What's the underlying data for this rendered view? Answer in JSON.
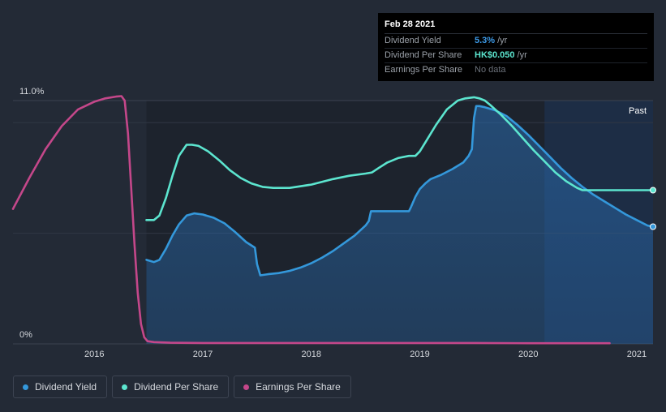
{
  "chart_data": {
    "type": "line",
    "title": "",
    "xlabel": "",
    "ylabel": "",
    "ylim": [
      0,
      11.0
    ],
    "xlim": [
      2015.25,
      2021.15
    ],
    "x_ticks": [
      "2016",
      "2017",
      "2018",
      "2019",
      "2020",
      "2021"
    ],
    "y_ticks": [
      "0%",
      "11.0%"
    ],
    "past_label": "Past",
    "past_start": 2020.15,
    "series": [
      {
        "name": "Dividend Yield",
        "color": "#3498db",
        "fill": true,
        "x": [
          2016.48,
          2016.55,
          2016.6,
          2016.66,
          2016.72,
          2016.78,
          2016.85,
          2016.92,
          2017.0,
          2017.1,
          2017.2,
          2017.3,
          2017.4,
          2017.48,
          2017.5,
          2017.53,
          2017.6,
          2017.7,
          2017.8,
          2017.9,
          2018.0,
          2018.1,
          2018.2,
          2018.3,
          2018.4,
          2018.5,
          2018.53,
          2018.55,
          2018.6,
          2018.7,
          2018.8,
          2018.9,
          2018.92,
          2018.96,
          2019.0,
          2019.05,
          2019.1,
          2019.2,
          2019.3,
          2019.4,
          2019.45,
          2019.48,
          2019.5,
          2019.52,
          2019.55,
          2019.6,
          2019.7,
          2019.8,
          2019.9,
          2020.0,
          2020.1,
          2020.2,
          2020.3,
          2020.4,
          2020.5,
          2020.6,
          2020.7,
          2020.8,
          2020.9,
          2021.0,
          2021.1,
          2021.15
        ],
        "values": [
          3.8,
          3.7,
          3.8,
          4.3,
          4.9,
          5.4,
          5.8,
          5.9,
          5.85,
          5.7,
          5.45,
          5.05,
          4.6,
          4.35,
          3.6,
          3.1,
          3.15,
          3.2,
          3.3,
          3.45,
          3.65,
          3.9,
          4.2,
          4.55,
          4.9,
          5.35,
          5.55,
          6.0,
          6.0,
          6.0,
          6.0,
          6.0,
          6.2,
          6.65,
          7.0,
          7.25,
          7.45,
          7.65,
          7.9,
          8.2,
          8.5,
          8.8,
          10.2,
          10.75,
          10.75,
          10.7,
          10.55,
          10.3,
          9.9,
          9.45,
          8.95,
          8.45,
          7.95,
          7.5,
          7.1,
          6.75,
          6.45,
          6.15,
          5.85,
          5.6,
          5.35,
          5.3
        ]
      },
      {
        "name": "Dividend Per Share",
        "color": "#5ce5cf",
        "fill": false,
        "x": [
          2016.48,
          2016.55,
          2016.6,
          2016.66,
          2016.72,
          2016.78,
          2016.85,
          2016.9,
          2016.96,
          2017.05,
          2017.15,
          2017.25,
          2017.35,
          2017.45,
          2017.55,
          2017.65,
          2017.8,
          2018.0,
          2018.2,
          2018.35,
          2018.5,
          2018.56,
          2018.62,
          2018.7,
          2018.8,
          2018.9,
          2018.96,
          2019.0,
          2019.05,
          2019.15,
          2019.25,
          2019.35,
          2019.42,
          2019.5,
          2019.55,
          2019.6,
          2019.65,
          2019.75,
          2019.85,
          2019.95,
          2020.05,
          2020.15,
          2020.25,
          2020.35,
          2020.45,
          2020.5,
          2020.6,
          2020.8,
          2021.0,
          2021.15
        ],
        "values": [
          5.6,
          5.6,
          5.8,
          6.6,
          7.6,
          8.5,
          9.0,
          9.0,
          8.95,
          8.7,
          8.3,
          7.85,
          7.5,
          7.25,
          7.1,
          7.05,
          7.05,
          7.2,
          7.45,
          7.6,
          7.7,
          7.75,
          7.95,
          8.2,
          8.4,
          8.5,
          8.5,
          8.7,
          9.1,
          9.9,
          10.6,
          11.0,
          11.1,
          11.15,
          11.1,
          11.0,
          10.8,
          10.35,
          9.85,
          9.3,
          8.75,
          8.25,
          7.75,
          7.35,
          7.05,
          6.95,
          6.95,
          6.95,
          6.95,
          6.95
        ]
      },
      {
        "name": "Earnings Per Share",
        "color": "#c4478a",
        "fill": false,
        "x": [
          2015.25,
          2015.4,
          2015.55,
          2015.7,
          2015.85,
          2016.0,
          2016.1,
          2016.2,
          2016.25,
          2016.28,
          2016.31,
          2016.34,
          2016.37,
          2016.4,
          2016.43,
          2016.46,
          2016.49,
          2016.55,
          2016.7,
          2017.0,
          2017.5,
          2018.0,
          2018.5,
          2019.0,
          2019.5,
          2020.0,
          2020.5,
          2020.75
        ],
        "values": [
          6.1,
          7.5,
          8.8,
          9.85,
          10.6,
          10.95,
          11.1,
          11.18,
          11.2,
          11.0,
          9.5,
          7.0,
          4.5,
          2.3,
          0.9,
          0.3,
          0.12,
          0.08,
          0.05,
          0.04,
          0.04,
          0.04,
          0.04,
          0.04,
          0.04,
          0.03,
          0.03,
          0.03
        ]
      }
    ]
  },
  "tooltip": {
    "date": "Feb 28 2021",
    "rows": [
      {
        "label": "Dividend Yield",
        "value": "5.3%",
        "unit": "/yr",
        "color": "#3d9be9"
      },
      {
        "label": "Dividend Per Share",
        "value": "HK$0.050",
        "unit": "/yr",
        "color": "#5ce5cf"
      },
      {
        "label": "Earnings Per Share",
        "value": "No data",
        "unit": "",
        "color": ""
      }
    ]
  },
  "legend": [
    {
      "label": "Dividend Yield",
      "color": "#3498db"
    },
    {
      "label": "Dividend Per Share",
      "color": "#5ce5cf"
    },
    {
      "label": "Earnings Per Share",
      "color": "#c4478a"
    }
  ]
}
